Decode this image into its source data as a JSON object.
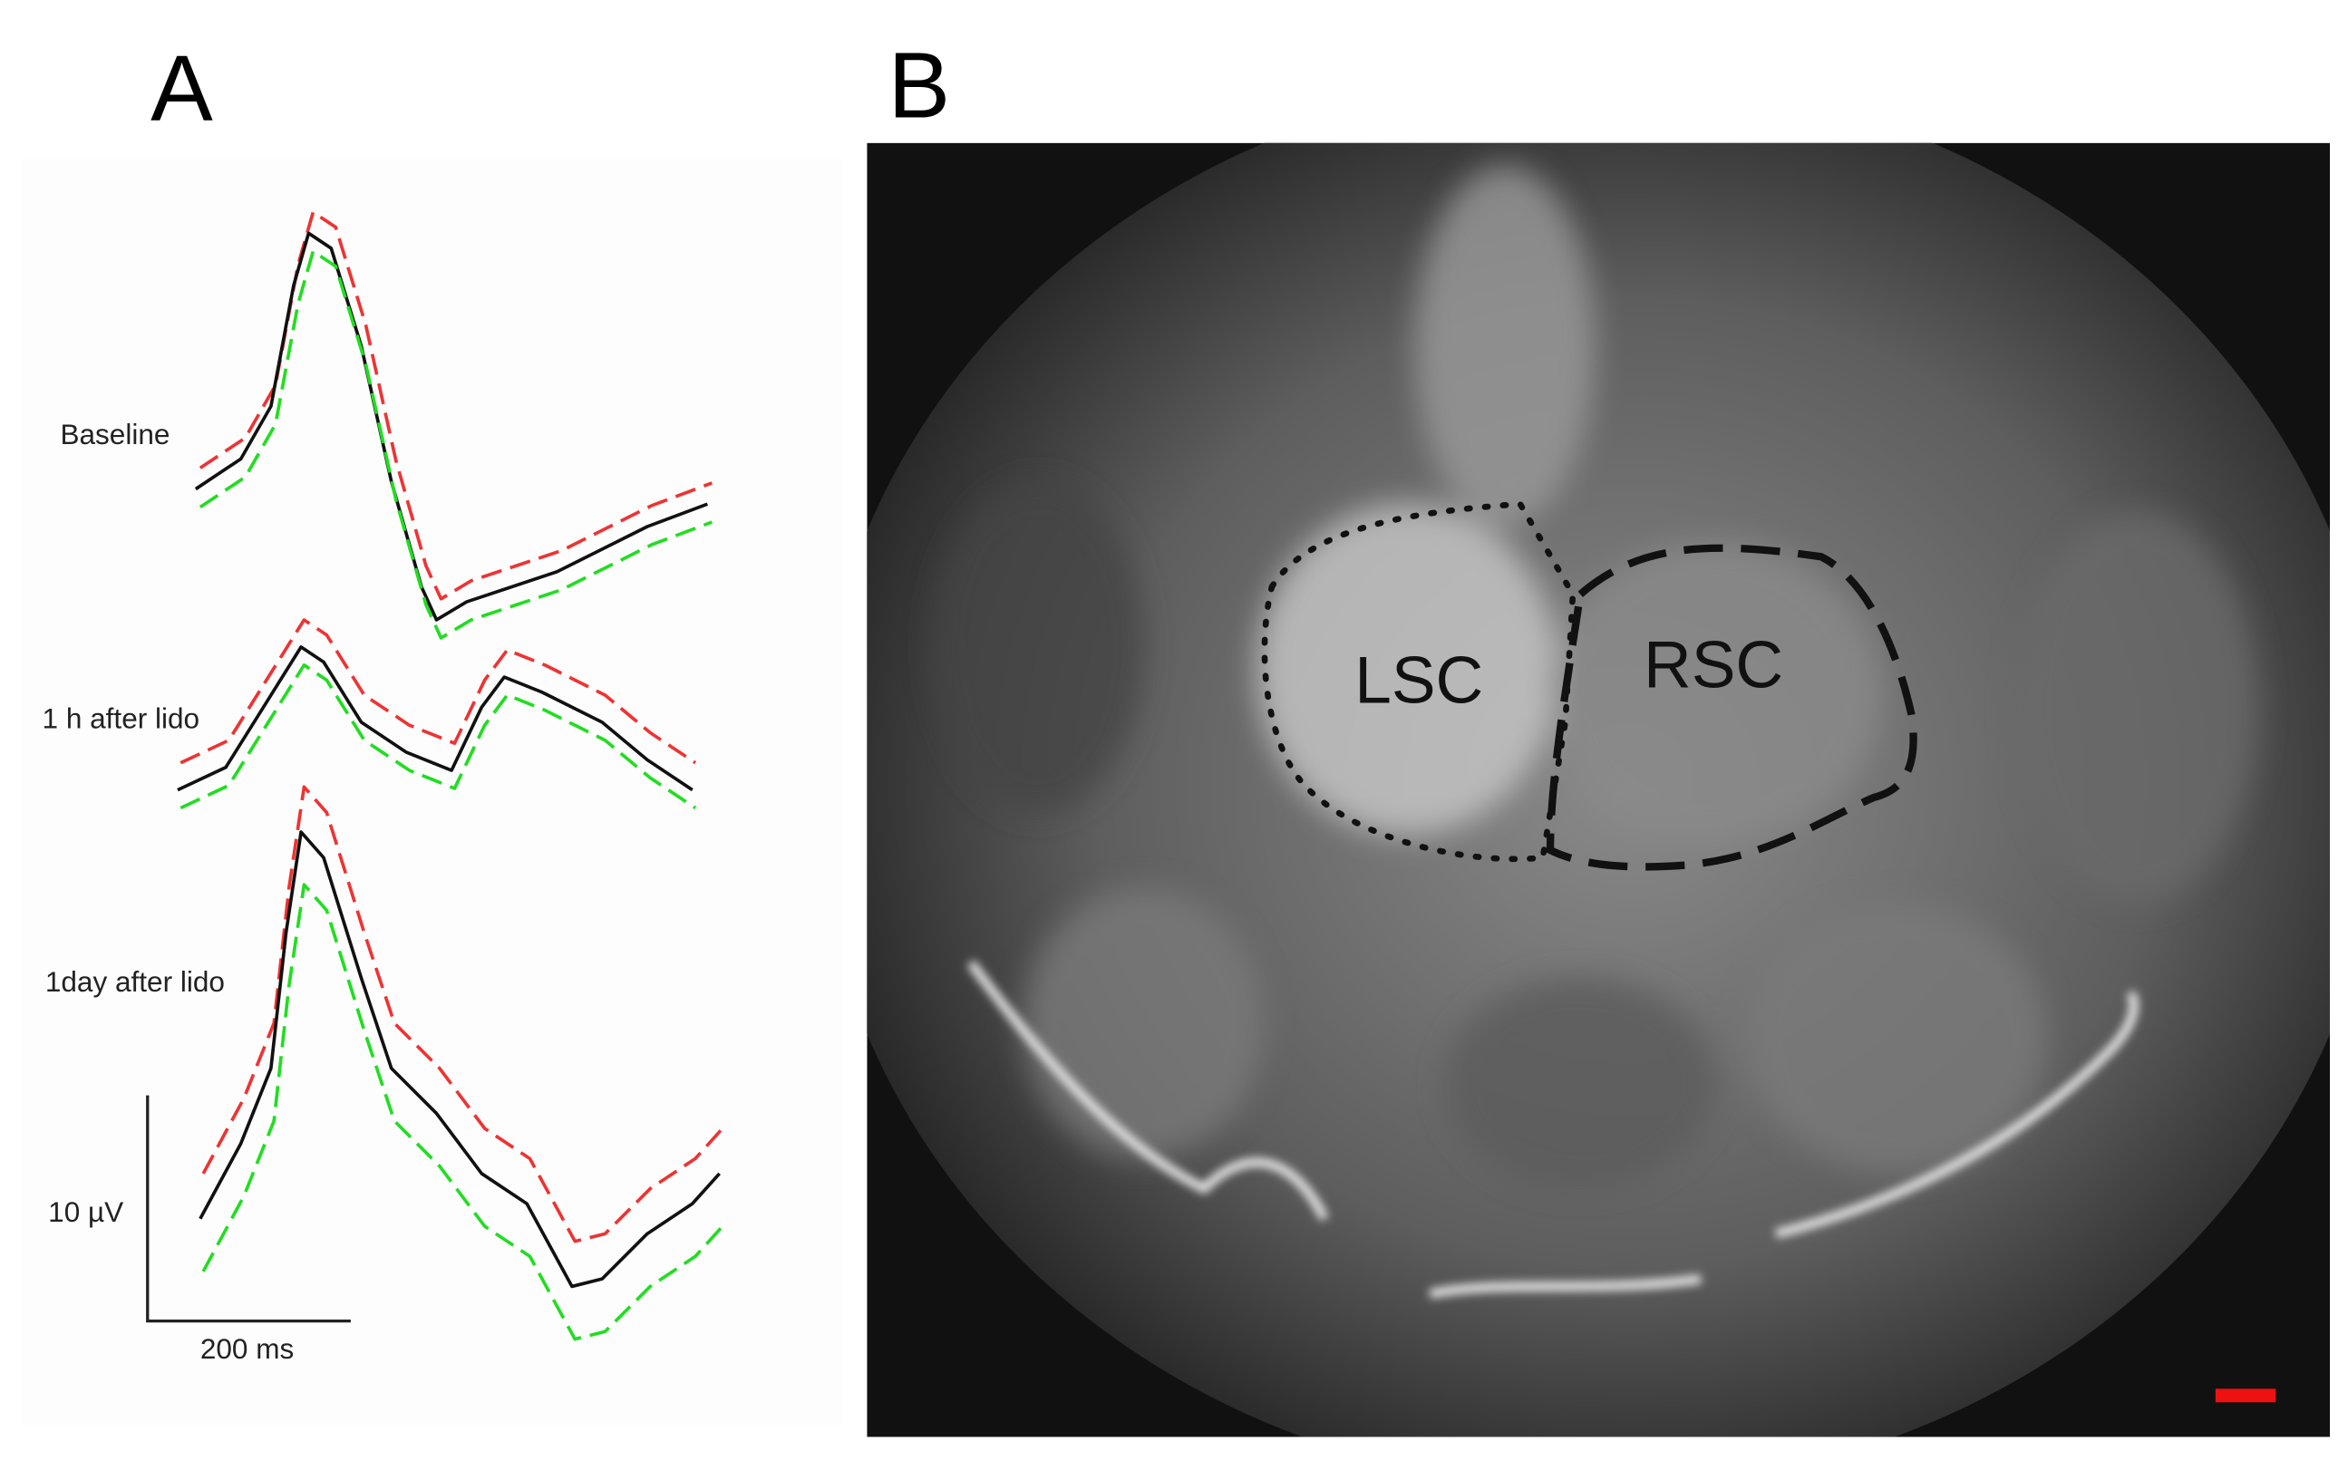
{
  "panel_a": {
    "label": "A",
    "traces": [
      {
        "label": "Baseline"
      },
      {
        "label": "1 h after lido"
      },
      {
        "label": "1day after lido"
      }
    ],
    "scale_voltage": "10 µV",
    "scale_time": "200 ms"
  },
  "panel_b": {
    "label": "B",
    "regions": [
      "LSC",
      "RSC"
    ]
  }
}
